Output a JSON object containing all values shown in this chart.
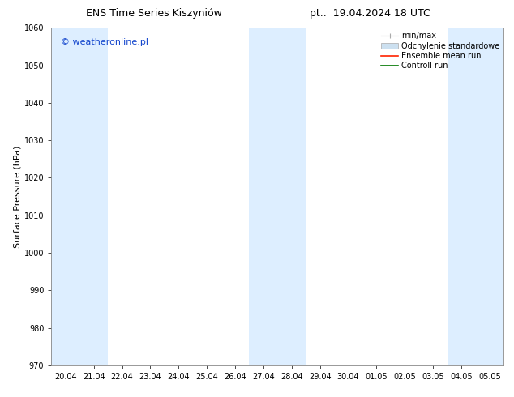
{
  "title_left": "ENS Time Series Kiszyniów",
  "title_right": "pt..  19.04.2024 18 UTC",
  "ylabel": "Surface Pressure (hPa)",
  "watermark": "© weatheronline.pl",
  "watermark_color": "#1144cc",
  "ylim": [
    970,
    1060
  ],
  "yticks": [
    970,
    980,
    990,
    1000,
    1010,
    1020,
    1030,
    1040,
    1050,
    1060
  ],
  "xtick_labels": [
    "20.04",
    "21.04",
    "22.04",
    "23.04",
    "24.04",
    "25.04",
    "26.04",
    "27.04",
    "28.04",
    "29.04",
    "30.04",
    "01.05",
    "02.05",
    "03.05",
    "04.05",
    "05.05"
  ],
  "shaded_indices": [
    0,
    1,
    7,
    8,
    14,
    15
  ],
  "band_color": "#ddeeff",
  "background_color": "#ffffff",
  "legend_labels": [
    "min/max",
    "Odchylenie standardowe",
    "Ensemble mean run",
    "Controll run"
  ],
  "title_fontsize": 9,
  "tick_fontsize": 7,
  "ylabel_fontsize": 8,
  "watermark_fontsize": 8,
  "legend_fontsize": 7
}
